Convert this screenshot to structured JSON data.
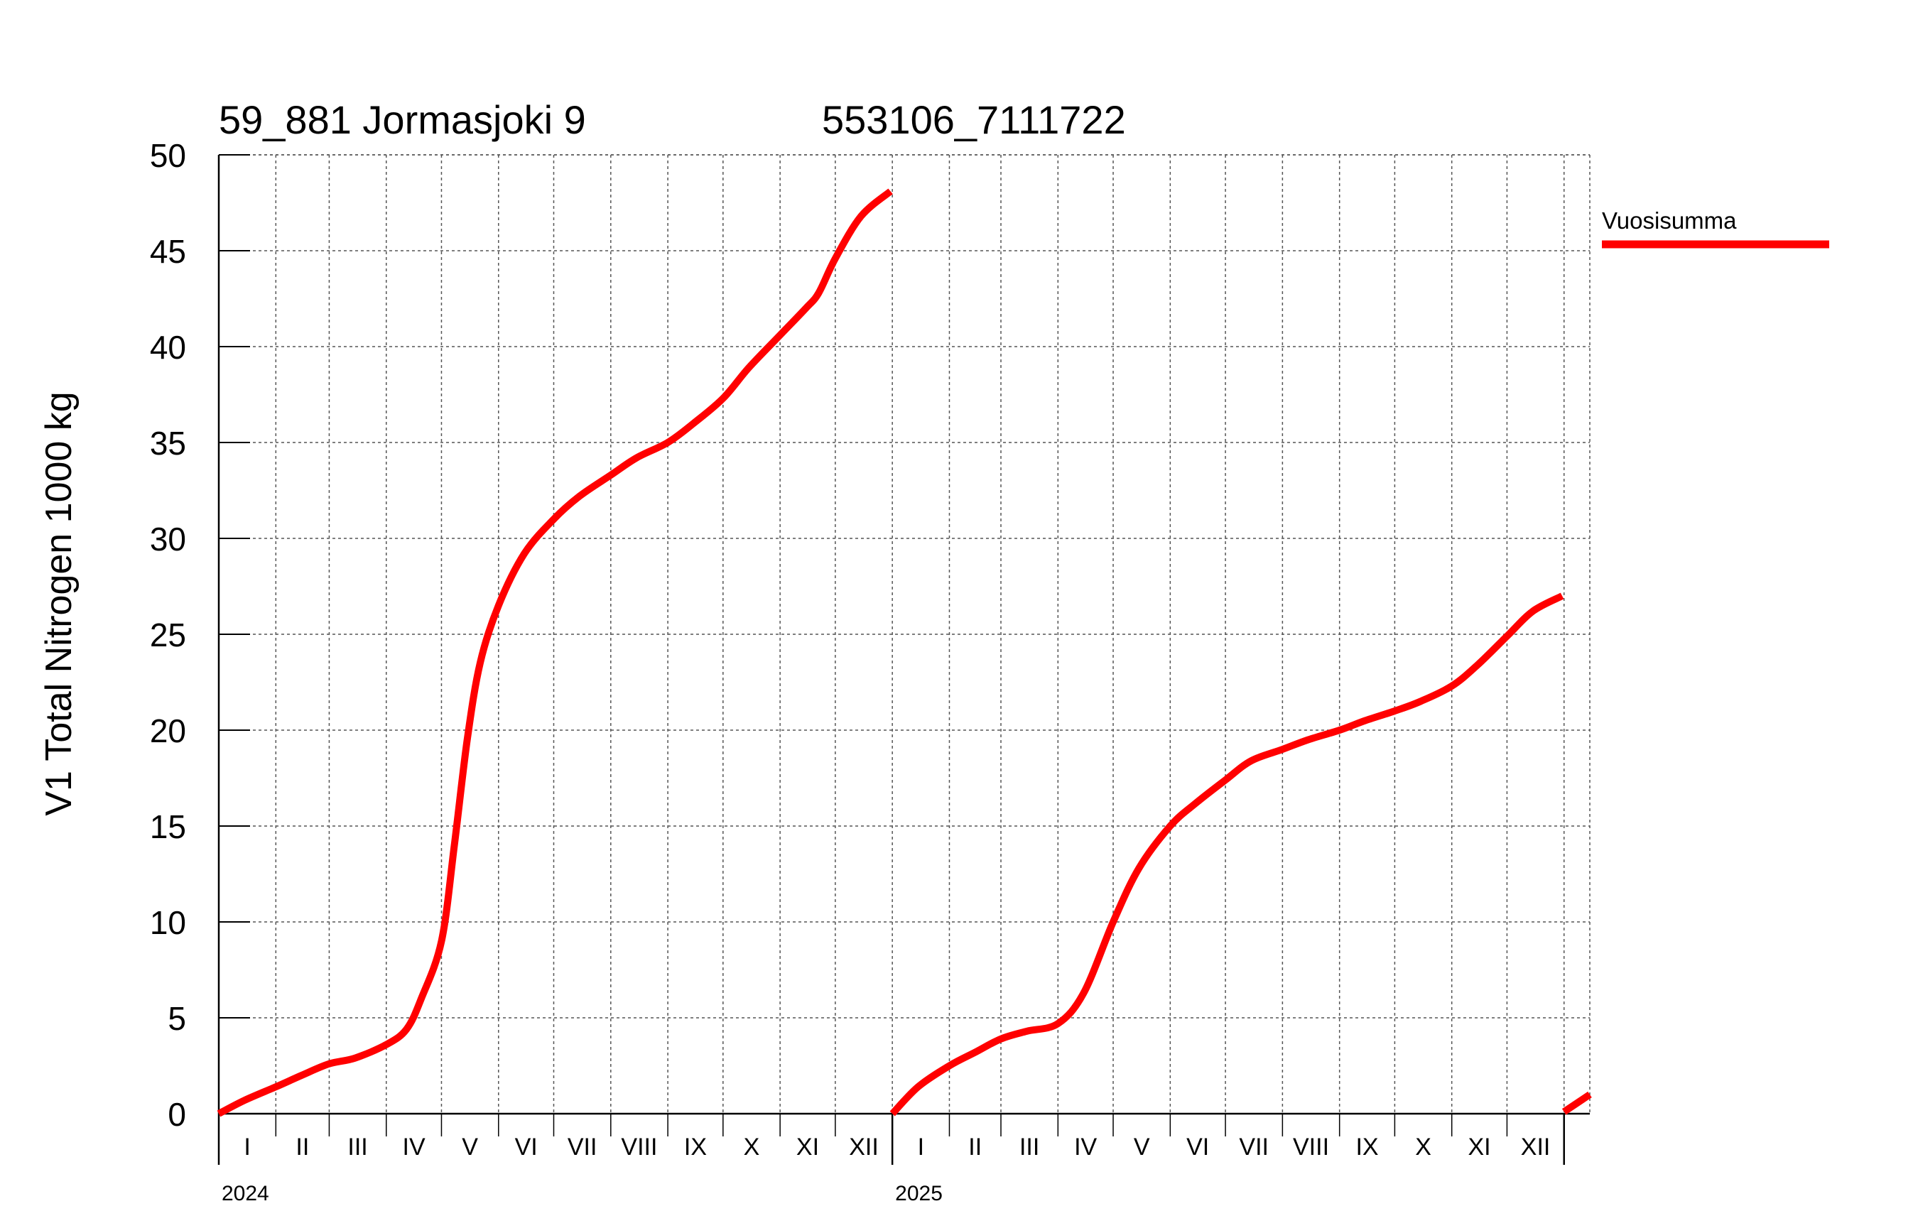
{
  "chart_data": {
    "type": "line",
    "title_left": "59_881 Jormasjoki 9",
    "title_right": "553106_7111722",
    "ylabel": "V1 Total Nitrogen 1000 kg",
    "ylim": [
      0,
      50
    ],
    "y_ticks": [
      0,
      5,
      10,
      15,
      20,
      25,
      30,
      35,
      40,
      45,
      50
    ],
    "x_range": [
      "2024-01-01",
      "2026-01-15"
    ],
    "grid": true,
    "legend_position": "right",
    "years": [
      {
        "label": "2024",
        "start": "2024-01-01"
      },
      {
        "label": "2025",
        "start": "2025-01-01"
      }
    ],
    "month_labels": [
      "I",
      "II",
      "III",
      "IV",
      "V",
      "VI",
      "VII",
      "VIII",
      "IX",
      "X",
      "XI",
      "XII"
    ],
    "series": [
      {
        "name": "Vuosisumma",
        "color": "#ff0000",
        "segments": [
          [
            [
              "2024-01-01",
              0.0
            ],
            [
              "2024-01-15",
              0.7
            ],
            [
              "2024-02-01",
              1.4
            ],
            [
              "2024-02-15",
              2.0
            ],
            [
              "2024-03-01",
              2.6
            ],
            [
              "2024-03-15",
              2.9
            ],
            [
              "2024-04-01",
              3.6
            ],
            [
              "2024-04-12",
              4.4
            ],
            [
              "2024-04-20",
              6.0
            ],
            [
              "2024-05-01",
              9.0
            ],
            [
              "2024-05-08",
              14.0
            ],
            [
              "2024-05-15",
              19.5
            ],
            [
              "2024-05-22",
              23.5
            ],
            [
              "2024-06-01",
              26.5
            ],
            [
              "2024-06-15",
              29.2
            ],
            [
              "2024-07-01",
              31.0
            ],
            [
              "2024-07-15",
              32.2
            ],
            [
              "2024-08-01",
              33.3
            ],
            [
              "2024-08-15",
              34.2
            ],
            [
              "2024-09-01",
              35.0
            ],
            [
              "2024-09-15",
              36.0
            ],
            [
              "2024-10-01",
              37.3
            ],
            [
              "2024-10-15",
              38.9
            ],
            [
              "2024-11-01",
              40.6
            ],
            [
              "2024-11-15",
              42.0
            ],
            [
              "2024-11-22",
              42.8
            ],
            [
              "2024-12-01",
              44.6
            ],
            [
              "2024-12-15",
              46.8
            ],
            [
              "2024-12-31",
              48.1
            ]
          ],
          [
            [
              "2025-01-01",
              0.0
            ],
            [
              "2025-01-15",
              1.4
            ],
            [
              "2025-02-01",
              2.5
            ],
            [
              "2025-02-15",
              3.2
            ],
            [
              "2025-03-01",
              3.9
            ],
            [
              "2025-03-15",
              4.3
            ],
            [
              "2025-04-01",
              4.7
            ],
            [
              "2025-04-15",
              6.3
            ],
            [
              "2025-05-01",
              10.0
            ],
            [
              "2025-05-15",
              12.8
            ],
            [
              "2025-06-01",
              15.0
            ],
            [
              "2025-06-15",
              16.2
            ],
            [
              "2025-07-01",
              17.4
            ],
            [
              "2025-07-15",
              18.4
            ],
            [
              "2025-08-01",
              19.0
            ],
            [
              "2025-08-15",
              19.5
            ],
            [
              "2025-09-01",
              20.0
            ],
            [
              "2025-09-15",
              20.5
            ],
            [
              "2025-10-01",
              21.0
            ],
            [
              "2025-10-15",
              21.5
            ],
            [
              "2025-11-01",
              22.3
            ],
            [
              "2025-11-15",
              23.4
            ],
            [
              "2025-12-01",
              24.9
            ],
            [
              "2025-12-15",
              26.2
            ],
            [
              "2025-12-31",
              27.0
            ]
          ],
          [
            [
              "2026-01-01",
              0.1
            ],
            [
              "2026-01-15",
              1.0
            ]
          ]
        ]
      }
    ]
  }
}
